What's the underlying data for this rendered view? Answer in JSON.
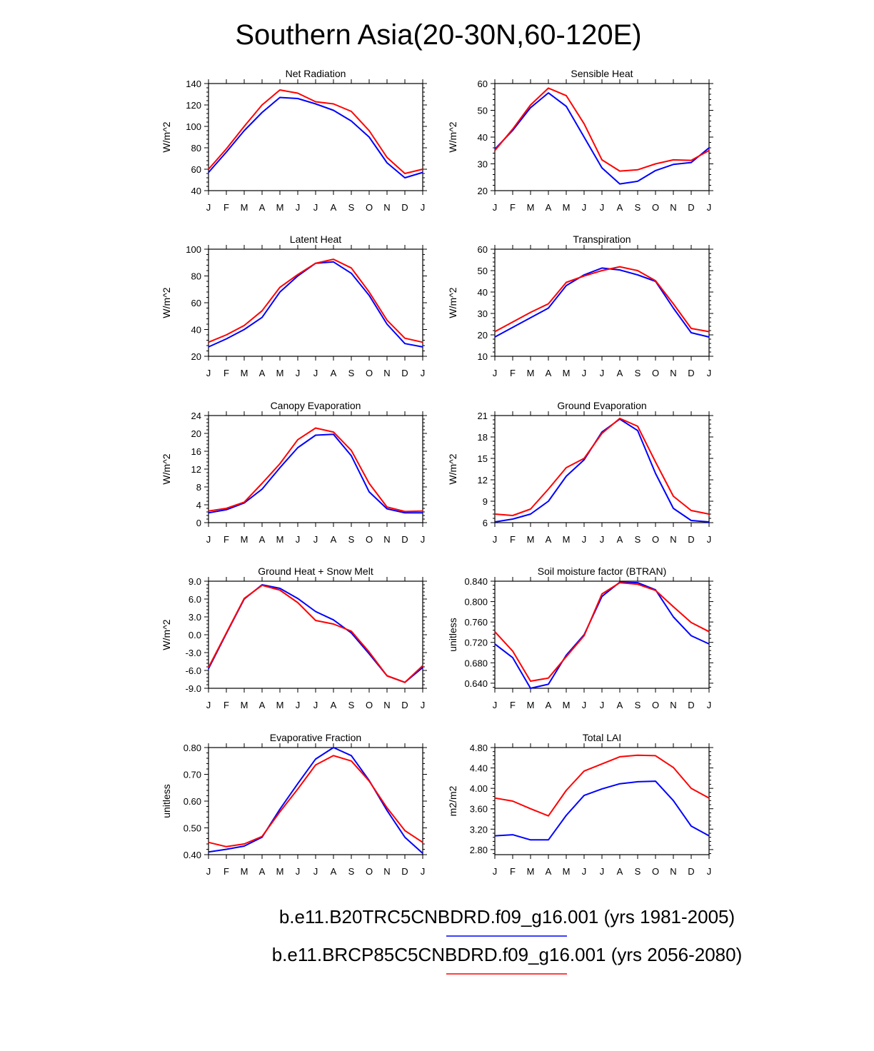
{
  "figure": {
    "title": "Southern Asia(20-30N,60-120E)"
  },
  "legend": [
    {
      "label": "b.e11.B20TRC5CNBDRD.f09_g16.001 (yrs 1981-2005)",
      "color": "#0000ff"
    },
    {
      "label": "b.e11.BRCP85C5CNBDRD.f09_g16.001 (yrs 2056-2080)",
      "color": "#ff0000"
    }
  ],
  "chart_data": [
    {
      "type": "line",
      "title": "Net Radiation",
      "ylabel": "W/m^2",
      "categories": [
        "J",
        "F",
        "M",
        "A",
        "M",
        "J",
        "J",
        "A",
        "S",
        "O",
        "N",
        "D",
        "J"
      ],
      "ylim": [
        40,
        140
      ],
      "yticks": [
        40,
        60,
        80,
        100,
        120,
        140
      ],
      "ytick_labels": [
        "40",
        "60",
        "80",
        "100",
        "120",
        "140"
      ],
      "series": [
        {
          "name": "b.e11.B20TRC5CNBDRD.f09_g16.001 (yrs 1981-2005)",
          "color": "#0000ff",
          "values": [
            57,
            76,
            96,
            113,
            127,
            126,
            121,
            115,
            105,
            90,
            66,
            52,
            57
          ]
        },
        {
          "name": "b.e11.BRCP85C5CNBDRD.f09_g16.001 (yrs 2056-2080)",
          "color": "#ff0000",
          "values": [
            60,
            79,
            100,
            120,
            134,
            131,
            123,
            121,
            114,
            96,
            71,
            56,
            60
          ]
        }
      ]
    },
    {
      "type": "line",
      "title": "Sensible Heat",
      "ylabel": "W/m^2",
      "categories": [
        "J",
        "F",
        "M",
        "A",
        "M",
        "J",
        "J",
        "A",
        "S",
        "O",
        "N",
        "D",
        "J"
      ],
      "ylim": [
        20,
        60
      ],
      "yticks": [
        20,
        30,
        40,
        50,
        60
      ],
      "ytick_labels": [
        "20",
        "30",
        "40",
        "50",
        "60"
      ],
      "series": [
        {
          "name": "b.e11.B20TRC5CNBDRD.f09_g16.001 (yrs 1981-2005)",
          "color": "#0000ff",
          "values": [
            35.5,
            42.5,
            51,
            56.5,
            51.5,
            40,
            28.5,
            22.5,
            23.5,
            27.5,
            29.8,
            30.5,
            36
          ]
        },
        {
          "name": "b.e11.BRCP85C5CNBDRD.f09_g16.001 (yrs 2056-2080)",
          "color": "#ff0000",
          "values": [
            35,
            43,
            52,
            58.3,
            55.5,
            45,
            31.5,
            27.3,
            27.8,
            30,
            31.5,
            31.3,
            35
          ]
        }
      ]
    },
    {
      "type": "line",
      "title": "Latent Heat",
      "ylabel": "W/m^2",
      "categories": [
        "J",
        "F",
        "M",
        "A",
        "M",
        "J",
        "J",
        "A",
        "S",
        "O",
        "N",
        "D",
        "J"
      ],
      "ylim": [
        20,
        100
      ],
      "yticks": [
        20,
        40,
        60,
        80,
        100
      ],
      "ytick_labels": [
        "20",
        "40",
        "60",
        "80",
        "100"
      ],
      "series": [
        {
          "name": "b.e11.B20TRC5CNBDRD.f09_g16.001 (yrs 1981-2005)",
          "color": "#0000ff",
          "values": [
            27,
            33,
            40,
            49,
            68,
            80,
            89.5,
            90.5,
            82,
            65.5,
            44,
            29.5,
            27
          ]
        },
        {
          "name": "b.e11.BRCP85C5CNBDRD.f09_g16.001 (yrs 2056-2080)",
          "color": "#ff0000",
          "values": [
            30.5,
            36,
            43,
            54,
            71.5,
            81,
            89.5,
            92.5,
            86,
            68,
            47,
            33.5,
            30.5
          ]
        }
      ]
    },
    {
      "type": "line",
      "title": "Transpiration",
      "ylabel": "W/m^2",
      "categories": [
        "J",
        "F",
        "M",
        "A",
        "M",
        "J",
        "J",
        "A",
        "S",
        "O",
        "N",
        "D",
        "J"
      ],
      "ylim": [
        10,
        60
      ],
      "yticks": [
        10,
        20,
        30,
        40,
        50,
        60
      ],
      "ytick_labels": [
        "10",
        "20",
        "30",
        "40",
        "50",
        "60"
      ],
      "series": [
        {
          "name": "b.e11.B20TRC5CNBDRD.f09_g16.001 (yrs 1981-2005)",
          "color": "#0000ff",
          "values": [
            19,
            23.5,
            28,
            32.5,
            43,
            48,
            51.2,
            50.3,
            48,
            45,
            32.5,
            21,
            19
          ]
        },
        {
          "name": "b.e11.BRCP85C5CNBDRD.f09_g16.001 (yrs 2056-2080)",
          "color": "#ff0000",
          "values": [
            21.5,
            26,
            30.5,
            34.5,
            44.5,
            47.5,
            50,
            51.8,
            50,
            45.3,
            34.5,
            23,
            21.5
          ]
        }
      ]
    },
    {
      "type": "line",
      "title": "Canopy Evaporation",
      "ylabel": "W/m^2",
      "categories": [
        "J",
        "F",
        "M",
        "A",
        "M",
        "J",
        "J",
        "A",
        "S",
        "O",
        "N",
        "D",
        "J"
      ],
      "ylim": [
        0,
        24
      ],
      "yticks": [
        0,
        4,
        8,
        12,
        16,
        20,
        24
      ],
      "ytick_labels": [
        "0",
        "4",
        "8",
        "12",
        "16",
        "20",
        "24"
      ],
      "series": [
        {
          "name": "b.e11.B20TRC5CNBDRD.f09_g16.001 (yrs 1981-2005)",
          "color": "#0000ff",
          "values": [
            2.2,
            2.9,
            4.4,
            7.5,
            12.3,
            16.8,
            19.6,
            19.8,
            15,
            6.9,
            3.1,
            2.2,
            2.2
          ]
        },
        {
          "name": "b.e11.BRCP85C5CNBDRD.f09_g16.001 (yrs 2056-2080)",
          "color": "#ff0000",
          "values": [
            2.6,
            3.2,
            4.6,
            8.8,
            13.2,
            18.6,
            21.2,
            20.3,
            16.2,
            8.8,
            3.5,
            2.5,
            2.6
          ]
        }
      ]
    },
    {
      "type": "line",
      "title": "Ground Evaporation",
      "ylabel": "W/m^2",
      "categories": [
        "J",
        "F",
        "M",
        "A",
        "M",
        "J",
        "J",
        "A",
        "S",
        "O",
        "N",
        "D",
        "J"
      ],
      "ylim": [
        6,
        21
      ],
      "yticks": [
        6,
        9,
        12,
        15,
        18,
        21
      ],
      "ytick_labels": [
        "6",
        "9",
        "12",
        "15",
        "18",
        "21"
      ],
      "series": [
        {
          "name": "b.e11.B20TRC5CNBDRD.f09_g16.001 (yrs 1981-2005)",
          "color": "#0000ff",
          "values": [
            6.1,
            6.5,
            7.2,
            9,
            12.5,
            14.8,
            18.7,
            20.5,
            18.9,
            12.9,
            8,
            6.3,
            6.1
          ]
        },
        {
          "name": "b.e11.BRCP85C5CNBDRD.f09_g16.001 (yrs 2056-2080)",
          "color": "#ff0000",
          "values": [
            7.2,
            7,
            7.9,
            10.7,
            13.7,
            15,
            18.5,
            20.6,
            19.5,
            14.5,
            9.7,
            7.7,
            7.2
          ]
        }
      ]
    },
    {
      "type": "line",
      "title": "Ground Heat + Snow Melt",
      "ylabel": "W/m^2",
      "categories": [
        "J",
        "F",
        "M",
        "A",
        "M",
        "J",
        "J",
        "A",
        "S",
        "O",
        "N",
        "D",
        "J"
      ],
      "ylim": [
        -9,
        9
      ],
      "yticks": [
        -9,
        -6,
        -3,
        0,
        3,
        6,
        9
      ],
      "ytick_labels": [
        "-9.0",
        "-6.0",
        "-3.0",
        "0.0",
        "3.0",
        "6.0",
        "9.0"
      ],
      "series": [
        {
          "name": "b.e11.B20TRC5CNBDRD.f09_g16.001 (yrs 1981-2005)",
          "color": "#0000ff",
          "values": [
            -5.7,
            0.2,
            6,
            8.4,
            7.8,
            6.1,
            3.9,
            2.5,
            0.3,
            -3.2,
            -6.9,
            -8,
            -5.5
          ]
        },
        {
          "name": "b.e11.BRCP85C5CNBDRD.f09_g16.001 (yrs 2056-2080)",
          "color": "#ff0000",
          "values": [
            -5.5,
            0.3,
            6.1,
            8.3,
            7.5,
            5.4,
            2.4,
            1.8,
            0.6,
            -2.9,
            -6.9,
            -8,
            -5.2
          ]
        }
      ]
    },
    {
      "type": "line",
      "title": "Soil moisture factor (BTRAN)",
      "ylabel": "unitless",
      "categories": [
        "J",
        "F",
        "M",
        "A",
        "M",
        "J",
        "J",
        "A",
        "S",
        "O",
        "N",
        "D",
        "J"
      ],
      "ylim": [
        0.63,
        0.84
      ],
      "yticks": [
        0.64,
        0.68,
        0.72,
        0.76,
        0.8,
        0.84
      ],
      "ytick_labels": [
        "0.640",
        "0.680",
        "0.720",
        "0.760",
        "0.800",
        "0.840"
      ],
      "series": [
        {
          "name": "b.e11.B20TRC5CNBDRD.f09_g16.001 (yrs 1981-2005)",
          "color": "#0000ff",
          "values": [
            0.717,
            0.69,
            0.63,
            0.638,
            0.695,
            0.735,
            0.81,
            0.838,
            0.837,
            0.823,
            0.77,
            0.733,
            0.717
          ]
        },
        {
          "name": "b.e11.BRCP85C5CNBDRD.f09_g16.001 (yrs 2056-2080)",
          "color": "#ff0000",
          "values": [
            0.741,
            0.703,
            0.644,
            0.65,
            0.692,
            0.733,
            0.815,
            0.837,
            0.834,
            0.822,
            0.79,
            0.759,
            0.741
          ]
        }
      ]
    },
    {
      "type": "line",
      "title": "Evaporative Fraction",
      "ylabel": "unitless",
      "categories": [
        "J",
        "F",
        "M",
        "A",
        "M",
        "J",
        "J",
        "A",
        "S",
        "O",
        "N",
        "D",
        "J"
      ],
      "ylim": [
        0.4,
        0.8
      ],
      "yticks": [
        0.4,
        0.5,
        0.6,
        0.7,
        0.8
      ],
      "ytick_labels": [
        "0.40",
        "0.50",
        "0.60",
        "0.70",
        "0.80"
      ],
      "series": [
        {
          "name": "b.e11.B20TRC5CNBDRD.f09_g16.001 (yrs 1981-2005)",
          "color": "#0000ff",
          "values": [
            0.41,
            0.42,
            0.432,
            0.465,
            0.57,
            0.665,
            0.757,
            0.8,
            0.77,
            0.677,
            0.565,
            0.465,
            0.405
          ]
        },
        {
          "name": "b.e11.BRCP85C5CNBDRD.f09_g16.001 (yrs 2056-2080)",
          "color": "#ff0000",
          "values": [
            0.446,
            0.43,
            0.44,
            0.468,
            0.56,
            0.645,
            0.735,
            0.77,
            0.75,
            0.675,
            0.575,
            0.49,
            0.446
          ]
        }
      ]
    },
    {
      "type": "line",
      "title": "Total LAI",
      "ylabel": "m2/m2",
      "categories": [
        "J",
        "F",
        "M",
        "A",
        "M",
        "J",
        "J",
        "A",
        "S",
        "O",
        "N",
        "D",
        "J"
      ],
      "ylim": [
        2.7,
        4.8
      ],
      "yticks": [
        2.8,
        3.2,
        3.6,
        4.0,
        4.4,
        4.8
      ],
      "ytick_labels": [
        "2.80",
        "3.20",
        "3.60",
        "4.00",
        "4.40",
        "4.80"
      ],
      "series": [
        {
          "name": "b.e11.B20TRC5CNBDRD.f09_g16.001 (yrs 1981-2005)",
          "color": "#0000ff",
          "values": [
            3.07,
            3.09,
            2.99,
            2.99,
            3.47,
            3.86,
            3.99,
            4.09,
            4.13,
            4.14,
            3.76,
            3.26,
            3.07
          ]
        },
        {
          "name": "b.e11.BRCP85C5CNBDRD.f09_g16.001 (yrs 2056-2080)",
          "color": "#ff0000",
          "values": [
            3.81,
            3.75,
            3.6,
            3.46,
            3.96,
            4.34,
            4.48,
            4.62,
            4.65,
            4.64,
            4.41,
            4.0,
            3.81
          ]
        }
      ]
    }
  ]
}
